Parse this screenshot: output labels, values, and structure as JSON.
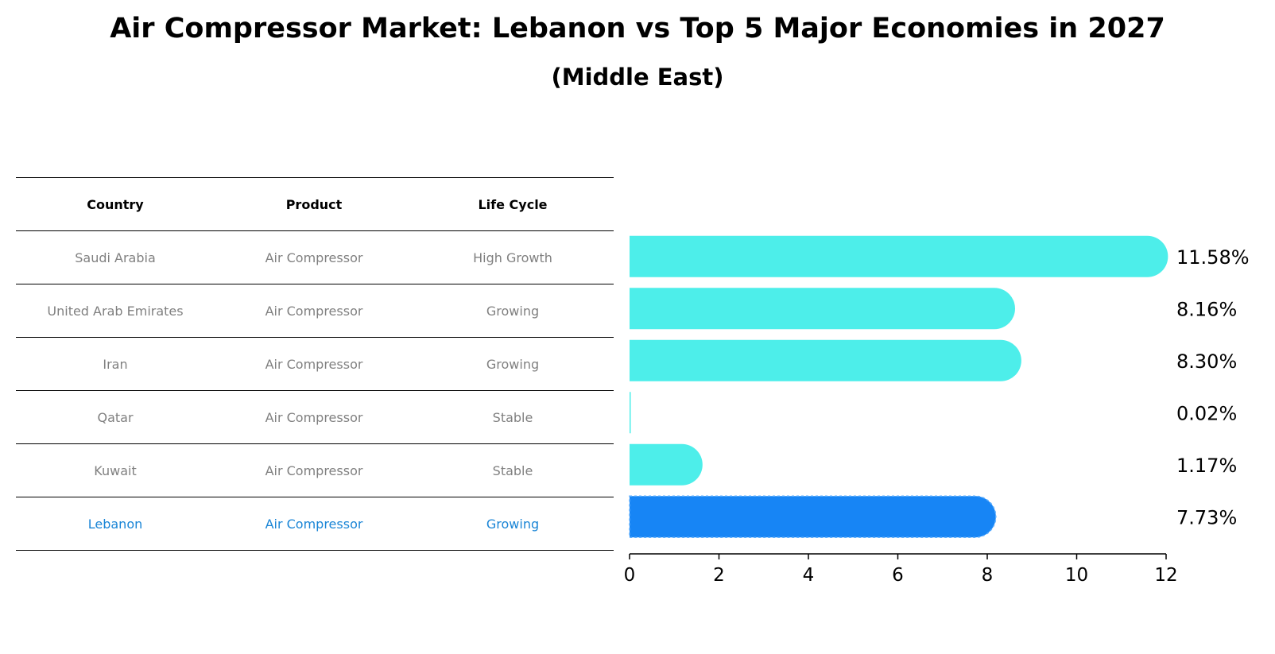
{
  "title": "Air Compressor Market: Lebanon vs Top 5 Major Economies in 2027",
  "subtitle": "(Middle East)",
  "table": {
    "headers": [
      "Country",
      "Product",
      "Life Cycle"
    ],
    "rows": [
      [
        "Saudi Arabia",
        "Air Compressor",
        "High Growth"
      ],
      [
        "United Arab Emirates",
        "Air Compressor",
        "Growing"
      ],
      [
        "Iran",
        "Air Compressor",
        "Growing"
      ],
      [
        "Qatar",
        "Air Compressor",
        "Stable"
      ],
      [
        "Kuwait",
        "Air Compressor",
        "Stable"
      ],
      [
        "Lebanon",
        "Air Compressor",
        "Growing"
      ]
    ],
    "highlight_row": 5
  },
  "chart_data": {
    "type": "bar",
    "orientation": "horizontal",
    "categories": [
      "Saudi Arabia",
      "United Arab Emirates",
      "Iran",
      "Qatar",
      "Kuwait",
      "Lebanon"
    ],
    "values": [
      11.58,
      8.16,
      8.3,
      0.02,
      1.17,
      7.73
    ],
    "value_labels": [
      "11.58%",
      "8.16%",
      "8.30%",
      "0.02%",
      "1.17%",
      "7.73%"
    ],
    "xlim": [
      0,
      12
    ],
    "xticks": [
      0,
      2,
      4,
      6,
      8,
      10,
      12
    ],
    "grid": false,
    "colors": {
      "default": "#4deeea",
      "highlight": "#1785f5"
    },
    "highlight_index": 5
  }
}
